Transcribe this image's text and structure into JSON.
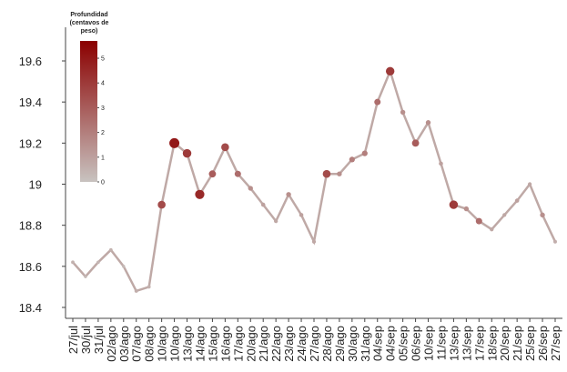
{
  "chart_data": {
    "type": "line",
    "categories": [
      "27/jul",
      "30/jul",
      "31/jul",
      "02/ago",
      "03/ago",
      "07/ago",
      "08/ago",
      "10/ago",
      "10/ago",
      "13/ago",
      "14/ago",
      "15/ago",
      "16/ago",
      "17/ago",
      "20/ago",
      "21/ago",
      "22/ago",
      "23/ago",
      "24/ago",
      "27/ago",
      "28/ago",
      "29/ago",
      "30/ago",
      "31/ago",
      "04/sep",
      "04/sep",
      "05/sep",
      "06/sep",
      "10/sep",
      "11/sep",
      "13/sep",
      "13/sep",
      "17/sep",
      "18/sep",
      "20/sep",
      "21/sep",
      "25/sep",
      "26/sep",
      "27/sep"
    ],
    "series": [
      {
        "color": "#bfa9a6",
        "values": [
          18.62,
          18.55,
          18.62,
          18.68,
          18.6,
          18.48,
          18.5,
          18.9,
          19.2,
          19.15,
          18.95,
          19.05,
          19.18,
          19.05,
          18.98,
          18.9,
          18.82,
          18.95,
          18.85,
          18.72,
          19.05,
          19.05,
          19.12,
          19.15,
          19.4,
          19.55,
          19.35,
          19.2,
          19.3,
          19.1,
          18.9,
          18.88,
          18.82,
          18.78,
          18.85,
          18.92,
          19.0,
          18.85,
          18.72
        ],
        "depth": [
          0.5,
          0.3,
          0.4,
          0.5,
          0.3,
          0.6,
          0.5,
          3.5,
          5,
          4,
          4.5,
          3,
          3.5,
          2.5,
          1.5,
          1,
          0.8,
          1.5,
          1,
          0.8,
          3.5,
          1.5,
          2,
          2,
          2.5,
          4,
          1.5,
          3,
          1.5,
          1,
          4,
          1.5,
          2.5,
          0.8,
          0.8,
          1,
          0.8,
          1.5,
          0.6
        ]
      }
    ],
    "ylim": [
      18.35,
      19.72
    ],
    "yticks": [
      18.4,
      18.6,
      18.8,
      19,
      19.2,
      19.4,
      19.6
    ],
    "colorbar": {
      "title": "Profundidad (centavos de peso)",
      "lim": [
        0,
        5.7
      ],
      "ticks": [
        0,
        1,
        2,
        3,
        4,
        5
      ],
      "colors": [
        "#c8c3c0",
        "#8b0000"
      ]
    }
  }
}
